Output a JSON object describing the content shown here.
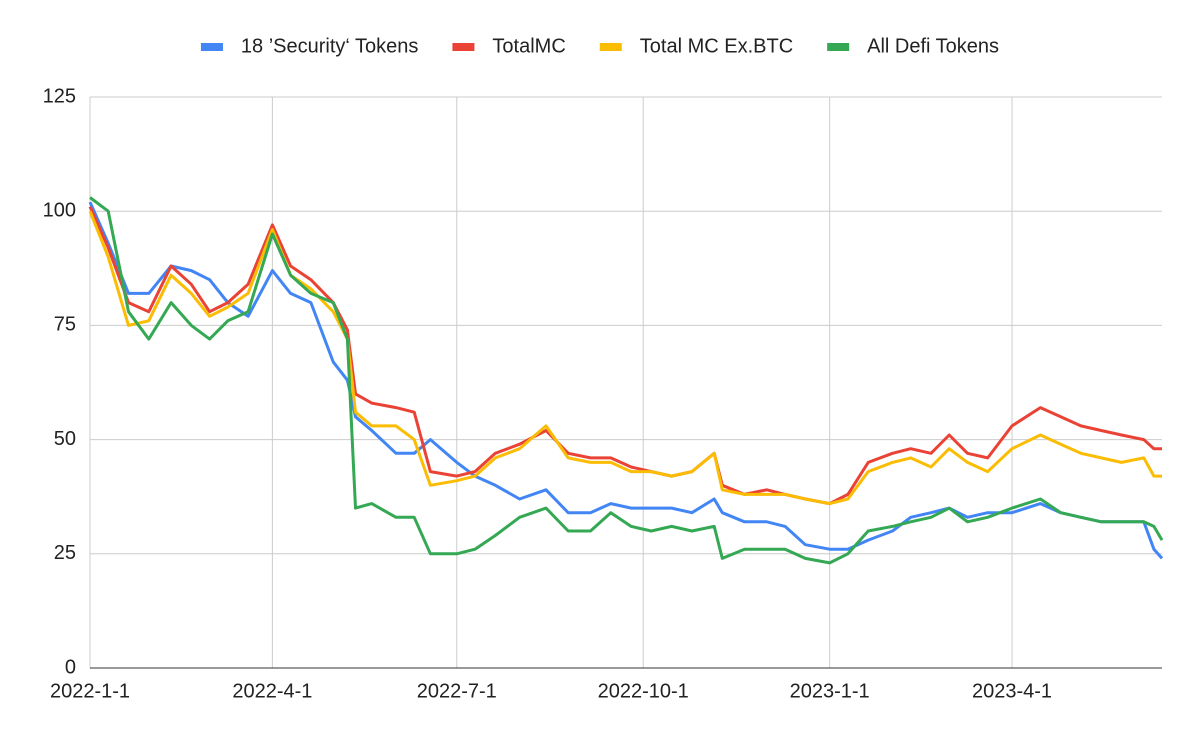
{
  "chart_data": {
    "type": "line",
    "x": [
      "2022-1-1",
      "2022-1-10",
      "2022-1-20",
      "2022-1-30",
      "2022-2-10",
      "2022-2-20",
      "2022-3-1",
      "2022-3-10",
      "2022-3-20",
      "2022-4-1",
      "2022-4-10",
      "2022-4-20",
      "2022-5-1",
      "2022-5-8",
      "2022-5-12",
      "2022-5-20",
      "2022-6-1",
      "2022-6-10",
      "2022-6-18",
      "2022-7-1",
      "2022-7-10",
      "2022-7-20",
      "2022-8-1",
      "2022-8-14",
      "2022-8-25",
      "2022-9-5",
      "2022-9-15",
      "2022-9-25",
      "2022-10-5",
      "2022-10-15",
      "2022-10-25",
      "2022-11-5",
      "2022-11-9",
      "2022-11-20",
      "2022-12-1",
      "2022-12-10",
      "2022-12-20",
      "2023-1-1",
      "2023-1-10",
      "2023-1-20",
      "2023-2-1",
      "2023-2-10",
      "2023-2-20",
      "2023-3-1",
      "2023-3-10",
      "2023-3-20",
      "2023-4-1",
      "2023-4-15",
      "2023-4-25",
      "2023-5-5",
      "2023-5-15",
      "2023-5-25",
      "2023-6-5",
      "2023-6-10",
      "2023-6-14"
    ],
    "series": [
      {
        "name": "18 ’Security‘ Tokens",
        "color": "#4285f4",
        "values": [
          102,
          93,
          82,
          82,
          88,
          87,
          85,
          80,
          77,
          87,
          82,
          80,
          67,
          63,
          55,
          52,
          47,
          47,
          50,
          45,
          42,
          40,
          37,
          39,
          34,
          34,
          36,
          35,
          35,
          35,
          34,
          37,
          34,
          32,
          32,
          31,
          27,
          26,
          26,
          28,
          30,
          33,
          34,
          35,
          33,
          34,
          34,
          36,
          34,
          33,
          32,
          32,
          32,
          26,
          24
        ]
      },
      {
        "name": "TotalMC",
        "color": "#ea4335",
        "values": [
          101,
          92,
          80,
          78,
          88,
          84,
          78,
          80,
          84,
          97,
          88,
          85,
          80,
          74,
          60,
          58,
          57,
          56,
          43,
          42,
          43,
          47,
          49,
          52,
          47,
          46,
          46,
          44,
          43,
          42,
          43,
          47,
          40,
          38,
          39,
          38,
          37,
          36,
          38,
          45,
          47,
          48,
          47,
          51,
          47,
          46,
          53,
          57,
          55,
          53,
          52,
          51,
          50,
          48,
          48
        ]
      },
      {
        "name": "Total MC Ex.BTC",
        "color": "#fbbc04",
        "values": [
          100,
          90,
          75,
          76,
          86,
          82,
          77,
          79,
          82,
          96,
          86,
          83,
          78,
          72,
          56,
          53,
          53,
          50,
          40,
          41,
          42,
          46,
          48,
          53,
          46,
          45,
          45,
          43,
          43,
          42,
          43,
          47,
          39,
          38,
          38,
          38,
          37,
          36,
          37,
          43,
          45,
          46,
          44,
          48,
          45,
          43,
          48,
          51,
          49,
          47,
          46,
          45,
          46,
          42,
          42
        ]
      },
      {
        "name": "All Defi Tokens",
        "color": "#34a853",
        "values": [
          103,
          100,
          78,
          72,
          80,
          75,
          72,
          76,
          78,
          95,
          86,
          82,
          80,
          72,
          35,
          36,
          33,
          33,
          25,
          25,
          26,
          29,
          33,
          35,
          30,
          30,
          34,
          31,
          30,
          31,
          30,
          31,
          24,
          26,
          26,
          26,
          24,
          23,
          25,
          30,
          31,
          32,
          33,
          35,
          32,
          33,
          35,
          37,
          34,
          33,
          32,
          32,
          32,
          31,
          28
        ]
      }
    ],
    "xlim": [
      "2022-1-1",
      "2023-6-14"
    ],
    "xticks": [
      "2022-1-1",
      "2022-4-1",
      "2022-7-1",
      "2022-10-1",
      "2023-1-1",
      "2023-4-1"
    ],
    "ylim": [
      0,
      125
    ],
    "yticks": [
      0,
      25,
      50,
      75,
      100,
      125
    ],
    "grid": true,
    "legend": "top"
  }
}
